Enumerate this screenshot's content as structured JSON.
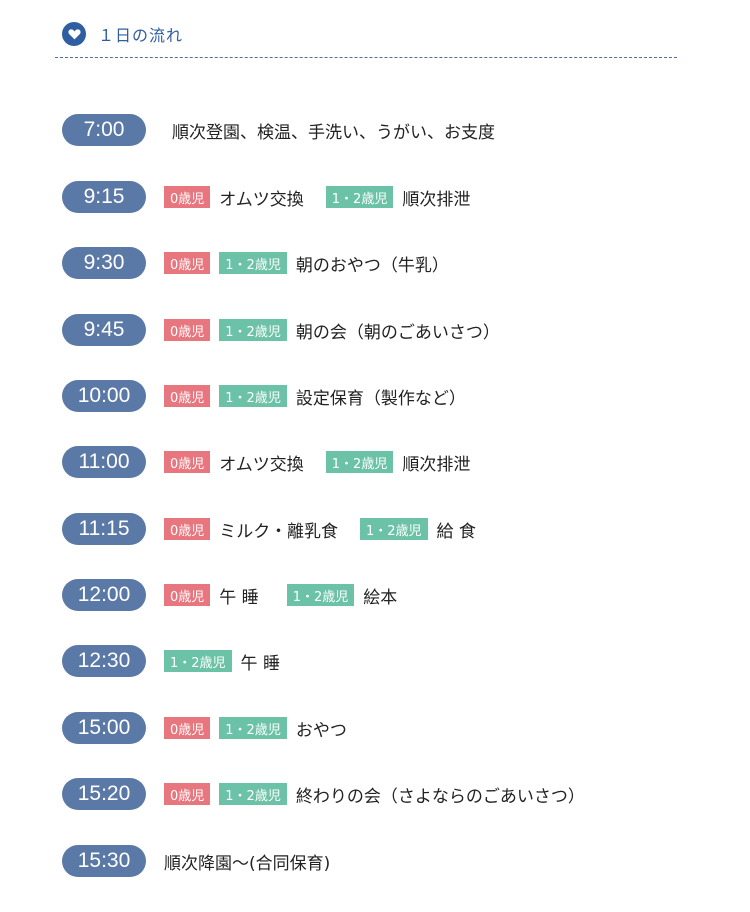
{
  "header": {
    "title": "１日の流れ"
  },
  "colors": {
    "time_pill": "#5b79a6",
    "badge_0": "#e8767e",
    "badge_12": "#6bc2a6",
    "accent": "#2f5fa0"
  },
  "schedule": [
    {
      "time": "7:00",
      "segments": [
        {
          "text": "順次登園、検温、手洗い、うがい、お支度"
        }
      ]
    },
    {
      "time": "9:15",
      "segments": [
        {
          "badge": "0歳児",
          "text": "オムツ交換"
        },
        {
          "badge": "1・2歳児",
          "text": "順次排泄"
        }
      ]
    },
    {
      "time": "9:30",
      "segments": [
        {
          "badge": "0歳児"
        },
        {
          "badge": "1・2歳児",
          "text": "朝のおやつ（牛乳）"
        }
      ]
    },
    {
      "time": "9:45",
      "segments": [
        {
          "badge": "0歳児"
        },
        {
          "badge": "1・2歳児",
          "text": "朝の会（朝のごあいさつ）"
        }
      ]
    },
    {
      "time": "10:00",
      "segments": [
        {
          "badge": "0歳児"
        },
        {
          "badge": "1・2歳児",
          "text": "設定保育（製作など）"
        }
      ]
    },
    {
      "time": "11:00",
      "segments": [
        {
          "badge": "0歳児",
          "text": "オムツ交換"
        },
        {
          "badge": "1・2歳児",
          "text": "順次排泄"
        }
      ]
    },
    {
      "time": "11:15",
      "segments": [
        {
          "badge": "0歳児",
          "text": "ミルク・離乳食"
        },
        {
          "badge": "1・2歳児",
          "text": "給 食"
        }
      ]
    },
    {
      "time": "12:00",
      "segments": [
        {
          "badge": "0歳児",
          "text": "午 睡"
        },
        {
          "badge": "1・2歳児",
          "text": "絵本"
        }
      ]
    },
    {
      "time": "12:30",
      "segments": [
        {
          "badge": "1・2歳児",
          "text": "午 睡"
        }
      ]
    },
    {
      "time": "15:00",
      "segments": [
        {
          "badge": "0歳児"
        },
        {
          "badge": "1・2歳児",
          "text": "おやつ"
        }
      ]
    },
    {
      "time": "15:20",
      "segments": [
        {
          "badge": "0歳児"
        },
        {
          "badge": "1・2歳児",
          "text": "終わりの会（さよならのごあいさつ）"
        }
      ]
    },
    {
      "time": "15:30",
      "segments": [
        {
          "text": "順次降園〜(合同保育)"
        }
      ]
    }
  ]
}
